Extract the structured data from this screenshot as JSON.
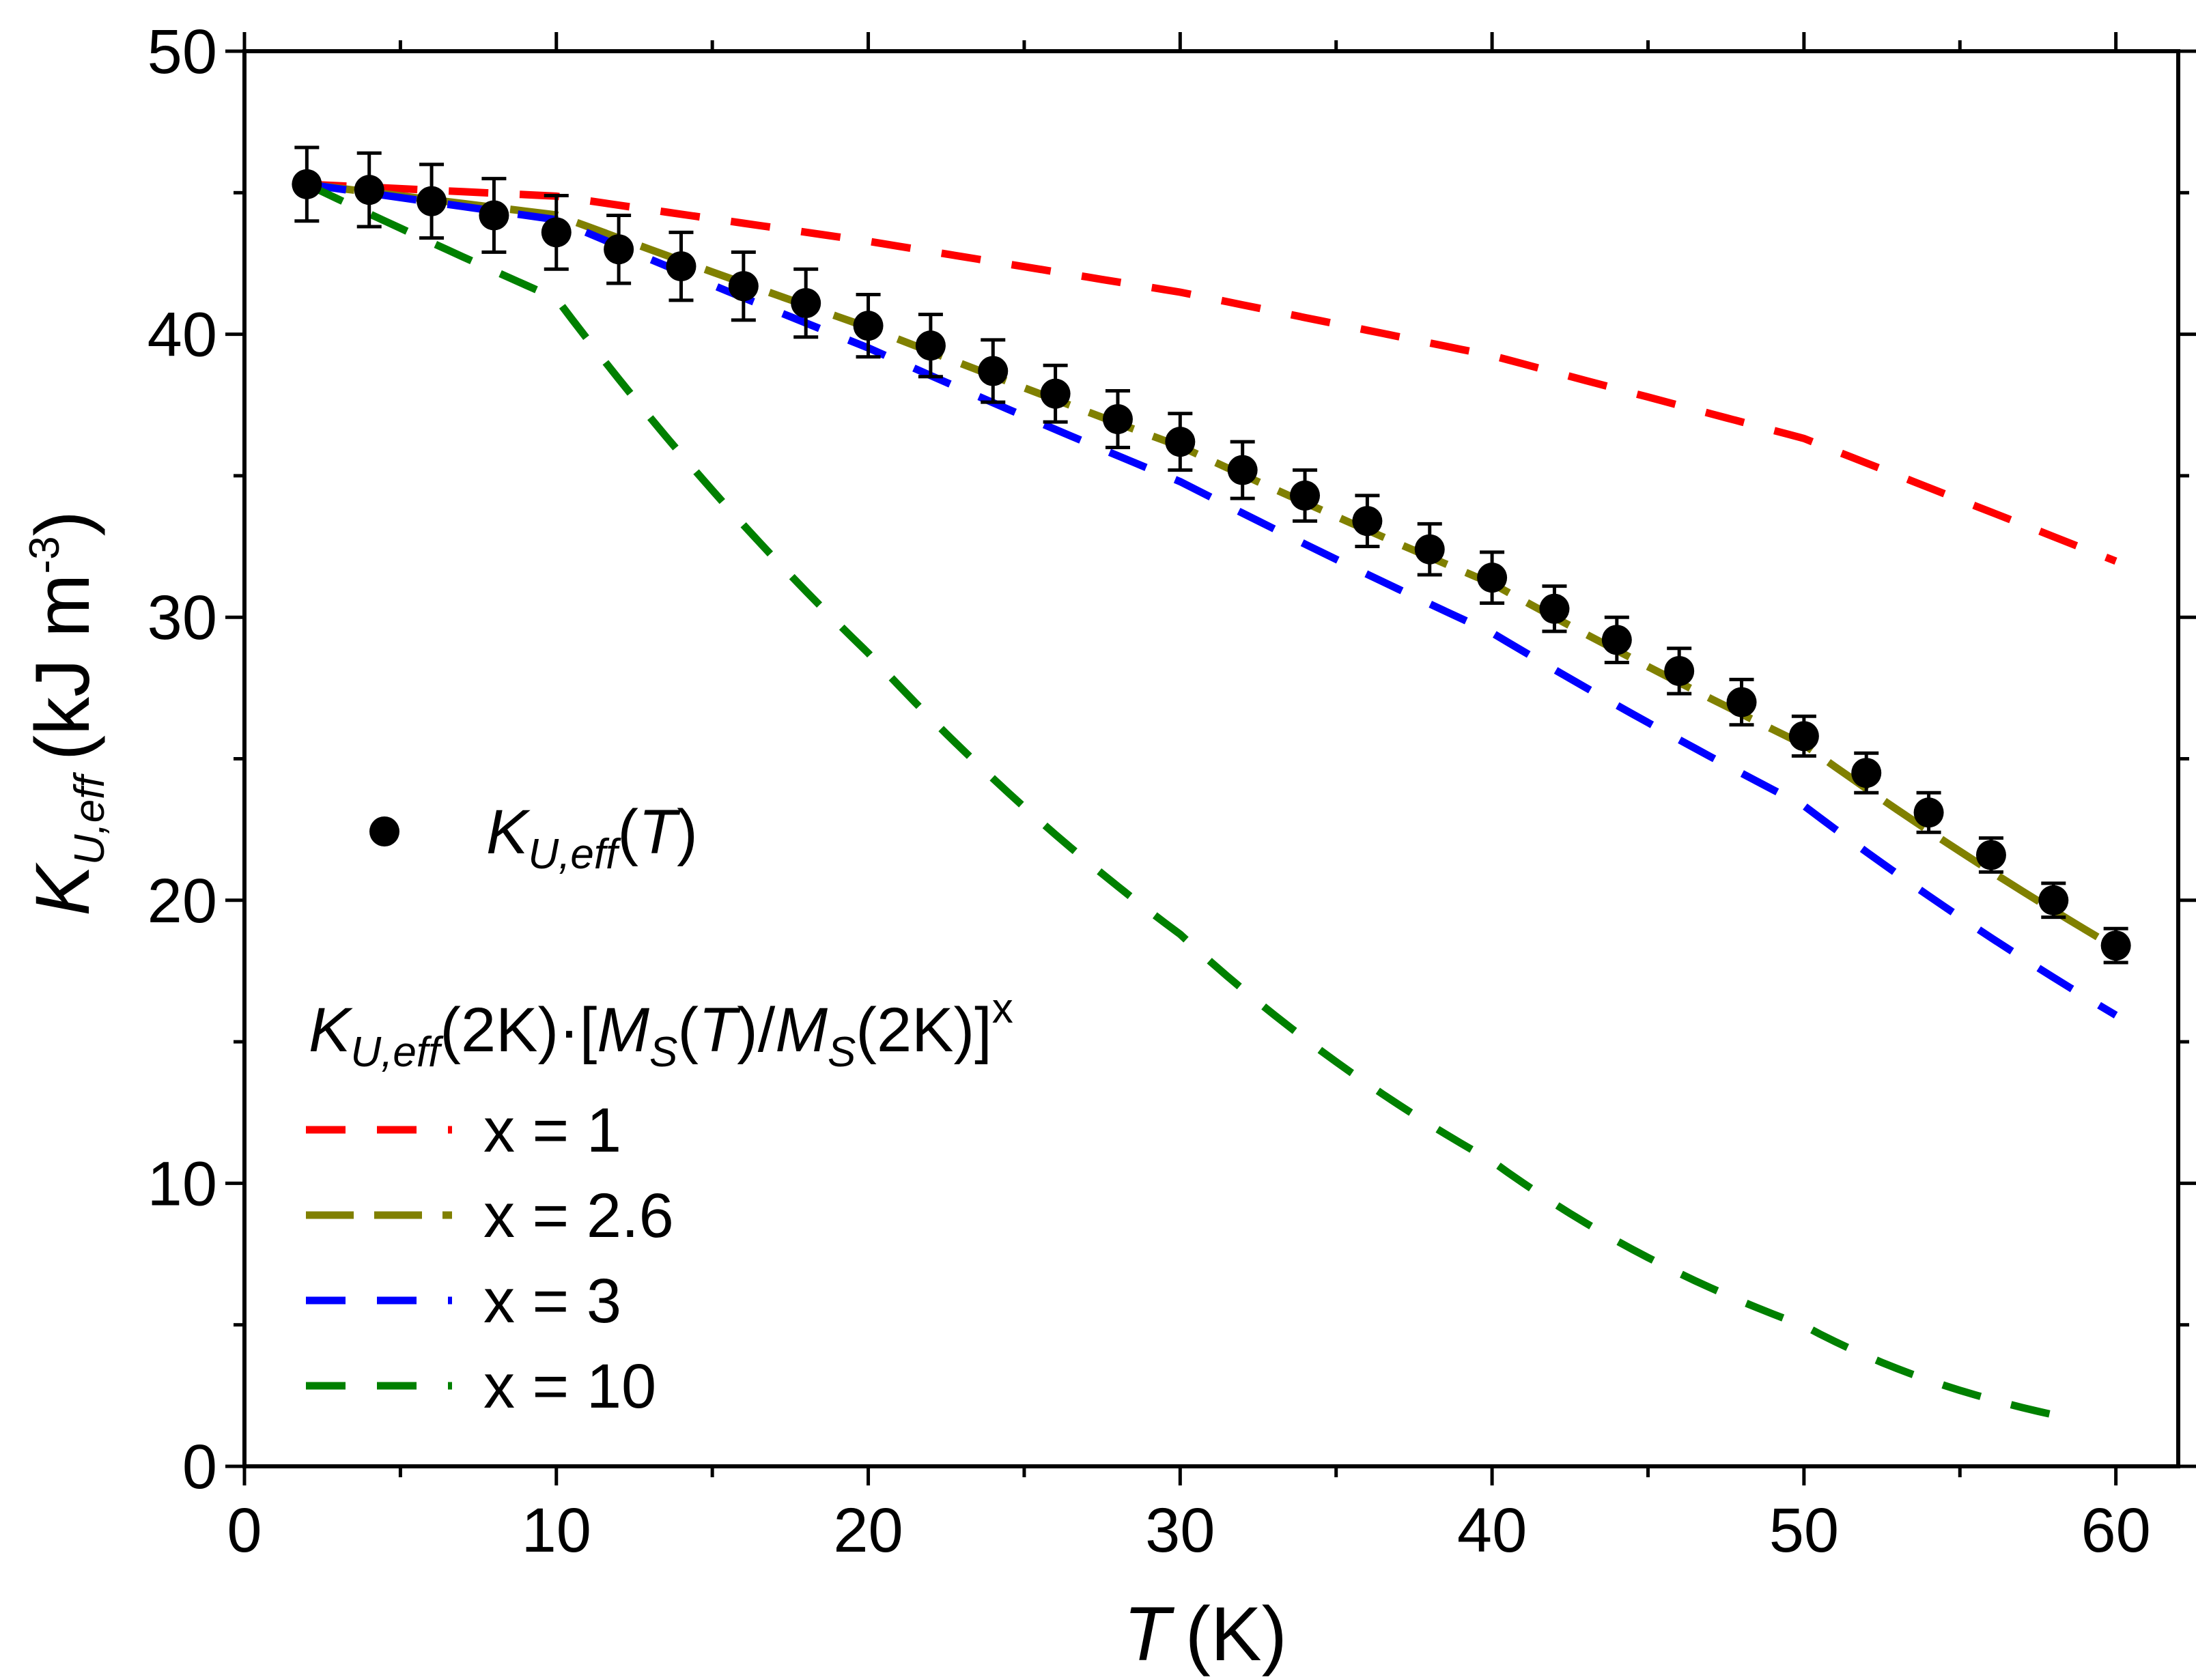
{
  "chart_data": {
    "type": "scatter",
    "xlabel": {
      "symbol": "T",
      "unit": "(K)"
    },
    "ylabel": {
      "symbol": "K",
      "subscript": "U,eff",
      "unit": "(kJ m",
      "unit_exp": "-3",
      "unit_close": ")"
    },
    "xlim": [
      0,
      62
    ],
    "ylim": [
      0,
      50
    ],
    "x_ticks": [
      0,
      10,
      20,
      30,
      40,
      50,
      60
    ],
    "y_ticks": [
      0,
      10,
      20,
      30,
      40,
      50
    ],
    "x_tick_labels": [
      "0",
      "10",
      "20",
      "30",
      "40",
      "50",
      "60"
    ],
    "y_tick_labels": [
      "0",
      "10",
      "20",
      "30",
      "40",
      "50"
    ],
    "x_minor_step": 5,
    "y_minor_step": 5,
    "data_series": {
      "name": "K_U,eff(T)",
      "label_symbol": "K",
      "label_sub": "U,eff",
      "label_arg": "(",
      "label_var": "T",
      "label_close": ")",
      "color": "#000000",
      "x": [
        2,
        4,
        6,
        8,
        10,
        12,
        14,
        16,
        18,
        20,
        22,
        24,
        26,
        28,
        30,
        32,
        34,
        36,
        38,
        40,
        42,
        44,
        46,
        48,
        50,
        52,
        54,
        56,
        58,
        60
      ],
      "y": [
        45.3,
        45.1,
        44.7,
        44.2,
        43.6,
        43.0,
        42.4,
        41.7,
        41.1,
        40.3,
        39.6,
        38.7,
        37.9,
        37.0,
        36.2,
        35.2,
        34.3,
        33.4,
        32.4,
        31.4,
        30.3,
        29.2,
        28.1,
        27.0,
        25.8,
        24.5,
        23.1,
        21.6,
        20.0,
        18.4
      ],
      "err": [
        1.3,
        1.3,
        1.3,
        1.3,
        1.3,
        1.2,
        1.2,
        1.2,
        1.2,
        1.1,
        1.1,
        1.1,
        1.0,
        1.0,
        1.0,
        1.0,
        0.9,
        0.9,
        0.9,
        0.9,
        0.8,
        0.8,
        0.8,
        0.8,
        0.7,
        0.7,
        0.7,
        0.6,
        0.6,
        0.6
      ]
    },
    "model": {
      "formula": "K_U,eff(2K)·[M_S(T)/M_S(2K)]^x",
      "K0": 45.3,
      "ratio_points": {
        "x": [
          2,
          10,
          20,
          30,
          40,
          50,
          60
        ],
        "y": [
          1.0,
          0.9907,
          0.9555,
          0.9158,
          0.8663,
          0.8017,
          0.706
        ]
      },
      "lines": [
        {
          "name": "x = 1",
          "label": "x = 1",
          "exponent": 1,
          "color": "#ff0000",
          "x_end": 60
        },
        {
          "name": "x = 2.6",
          "label": "x = 2.6",
          "exponent": 2.6,
          "color": "#808000",
          "x_end": 60
        },
        {
          "name": "x = 3",
          "label": "x = 3",
          "exponent": 3,
          "color": "#0000ff",
          "x_end": 60
        },
        {
          "name": "x = 10",
          "label": "x = 10",
          "exponent": 10,
          "color": "#008000",
          "x_end": 58
        }
      ]
    },
    "legend": {
      "position": "left-center",
      "formula_parts": {
        "K": "K",
        "K_sub": "U,eff",
        "after_K": "(2K)·[",
        "M1": "M",
        "M1_sub": "S",
        "open1": "(",
        "T": "T",
        "close1": ")/",
        "M2": "M",
        "M2_sub": "S",
        "rest": "(2K)]",
        "exp": "x"
      }
    }
  }
}
